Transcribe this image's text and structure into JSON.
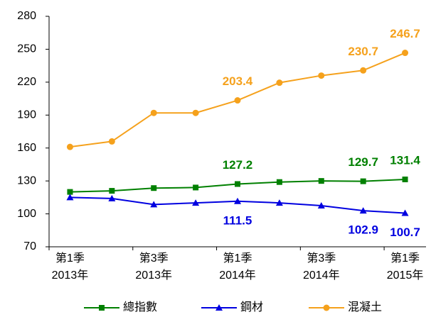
{
  "chart_data": {
    "type": "line",
    "categories": [
      [
        "第1季",
        "2013年"
      ],
      null,
      [
        "第3季",
        "2013年"
      ],
      null,
      [
        "第1季",
        "2014年"
      ],
      null,
      [
        "第3季",
        "2014年"
      ],
      null,
      [
        "第1季",
        "2015年"
      ]
    ],
    "series": [
      {
        "name": "總指數",
        "color": "#008000",
        "marker": "square",
        "values": [
          120,
          121,
          123.5,
          124,
          127.2,
          129,
          130,
          129.7,
          131.4
        ],
        "value_labels": [
          null,
          null,
          null,
          null,
          "127.2",
          null,
          null,
          "129.7",
          "131.4"
        ]
      },
      {
        "name": "鋼材",
        "color": "#0000e0",
        "marker": "triangle",
        "values": [
          115,
          114,
          108.5,
          110,
          111.5,
          110,
          107.5,
          102.9,
          100.7
        ],
        "value_labels": [
          null,
          null,
          null,
          null,
          "111.5",
          null,
          null,
          "102.9",
          "100.7"
        ]
      },
      {
        "name": "混凝土",
        "color": "#f5a11c",
        "marker": "circle",
        "values": [
          161,
          166,
          192,
          192,
          203.4,
          219.5,
          226,
          230.7,
          246.7
        ],
        "value_labels": [
          null,
          null,
          null,
          null,
          "203.4",
          null,
          null,
          "230.7",
          "246.7"
        ]
      }
    ],
    "ylim": [
      70,
      280
    ],
    "yticks": [
      70,
      100,
      130,
      160,
      190,
      220,
      250,
      280
    ],
    "grid": false,
    "legend": "bottom"
  }
}
